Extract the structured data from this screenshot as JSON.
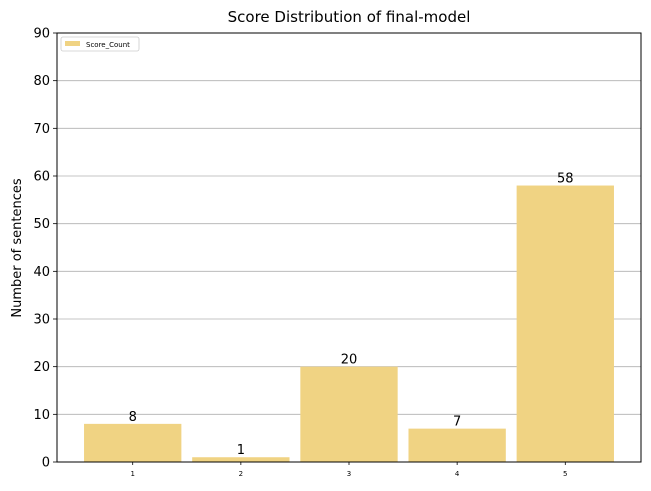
{
  "chart_data": {
    "type": "bar",
    "title": "Score Distribution of final-model",
    "xlabel": "",
    "ylabel": "Number of sentences",
    "categories": [
      "1",
      "2",
      "3",
      "4",
      "5"
    ],
    "series": [
      {
        "name": "Score_Count",
        "values": [
          8,
          1,
          20,
          7,
          58
        ]
      }
    ],
    "data_labels": [
      "8",
      "1",
      "20",
      "7",
      "58"
    ],
    "ylim": [
      0,
      90
    ],
    "yticks": [
      0,
      10,
      20,
      30,
      40,
      50,
      60,
      70,
      80,
      90
    ],
    "grid": "horizontal",
    "legend_position": "top-left",
    "bar_color": "#f0d383"
  }
}
